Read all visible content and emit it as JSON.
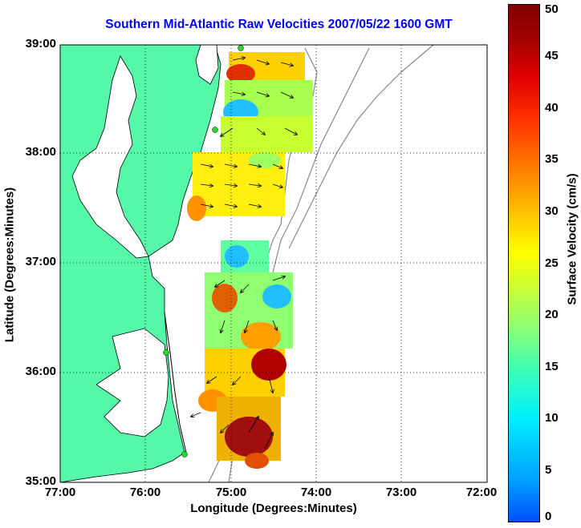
{
  "title": "Southern Mid-Atlantic Raw Velocities 2007/05/22 1600 GMT",
  "x_label": "Longitude (Degrees:Minutes)",
  "y_label": "Latitude (Degrees:Minutes)",
  "x_ticks": [
    "77:00",
    "76:00",
    "75:00",
    "74:00",
    "73:00",
    "72:00"
  ],
  "y_ticks": [
    "39:00",
    "38:00",
    "37:00",
    "36:00",
    "35:00"
  ],
  "colorbar": {
    "label": "Surface Velocity (cm/s)",
    "ticks": [
      "50",
      "45",
      "40",
      "35",
      "30",
      "25",
      "20",
      "15",
      "10",
      "5",
      "0"
    ],
    "range": [
      0,
      50
    ],
    "colormap": "jet"
  },
  "map": {
    "extent_lon": [
      -77,
      -72
    ],
    "extent_lat": [
      35,
      39
    ],
    "land_color": "#55f7a8",
    "grid": "dotted",
    "site_marker_color": "#22dd22"
  }
}
